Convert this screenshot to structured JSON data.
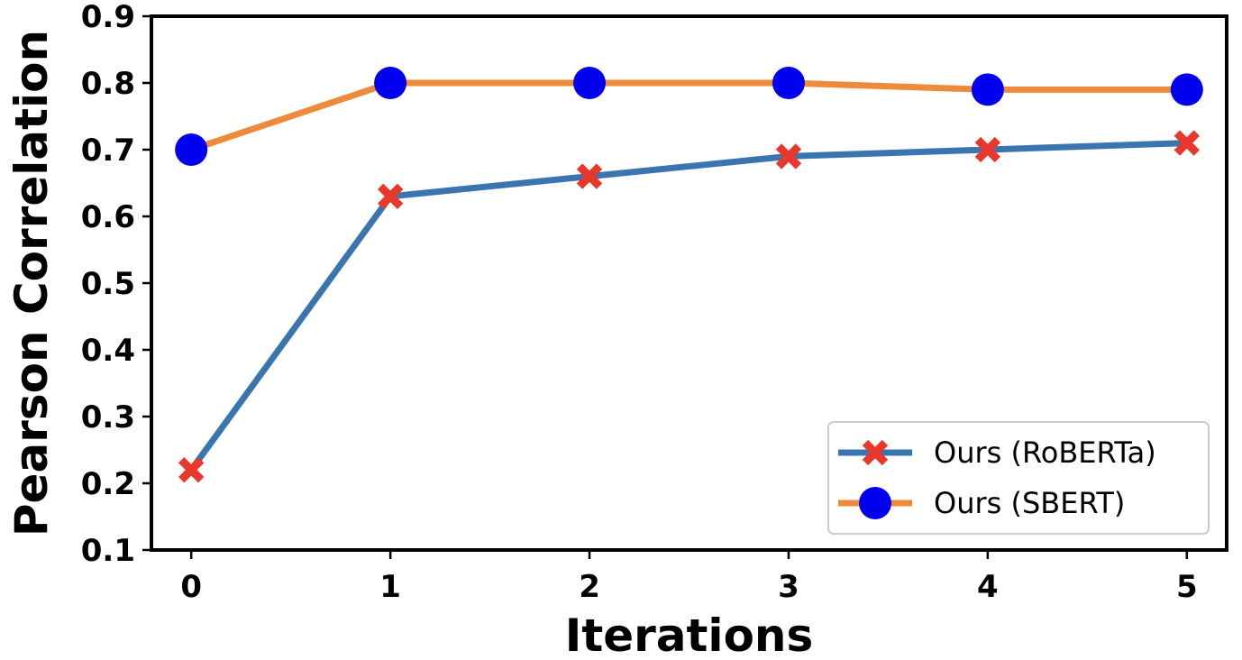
{
  "chart_data": {
    "type": "line",
    "title": "",
    "xlabel": "Iterations",
    "ylabel": "Pearson Correlation",
    "x": [
      0,
      1,
      2,
      3,
      4,
      5
    ],
    "x_ticks": [
      "0",
      "1",
      "2",
      "3",
      "4",
      "5"
    ],
    "y_ticks": [
      "0.1",
      "0.2",
      "0.3",
      "0.4",
      "0.5",
      "0.6",
      "0.7",
      "0.8",
      "0.9"
    ],
    "xlim": [
      -0.2,
      5.2
    ],
    "ylim": [
      0.1,
      0.9
    ],
    "grid": false,
    "legend_position": "bottom-right",
    "series": [
      {
        "name": "Ours (RoBERTa)",
        "values": [
          0.22,
          0.63,
          0.66,
          0.69,
          0.7,
          0.71
        ],
        "line_color": "#3a75b0",
        "marker": "x",
        "marker_color": "#e8382b"
      },
      {
        "name": "Ours (SBERT)",
        "values": [
          0.7,
          0.8,
          0.8,
          0.8,
          0.79,
          0.79
        ],
        "line_color": "#ee8a3a",
        "marker": "circle",
        "marker_color": "#0000ee"
      }
    ]
  }
}
